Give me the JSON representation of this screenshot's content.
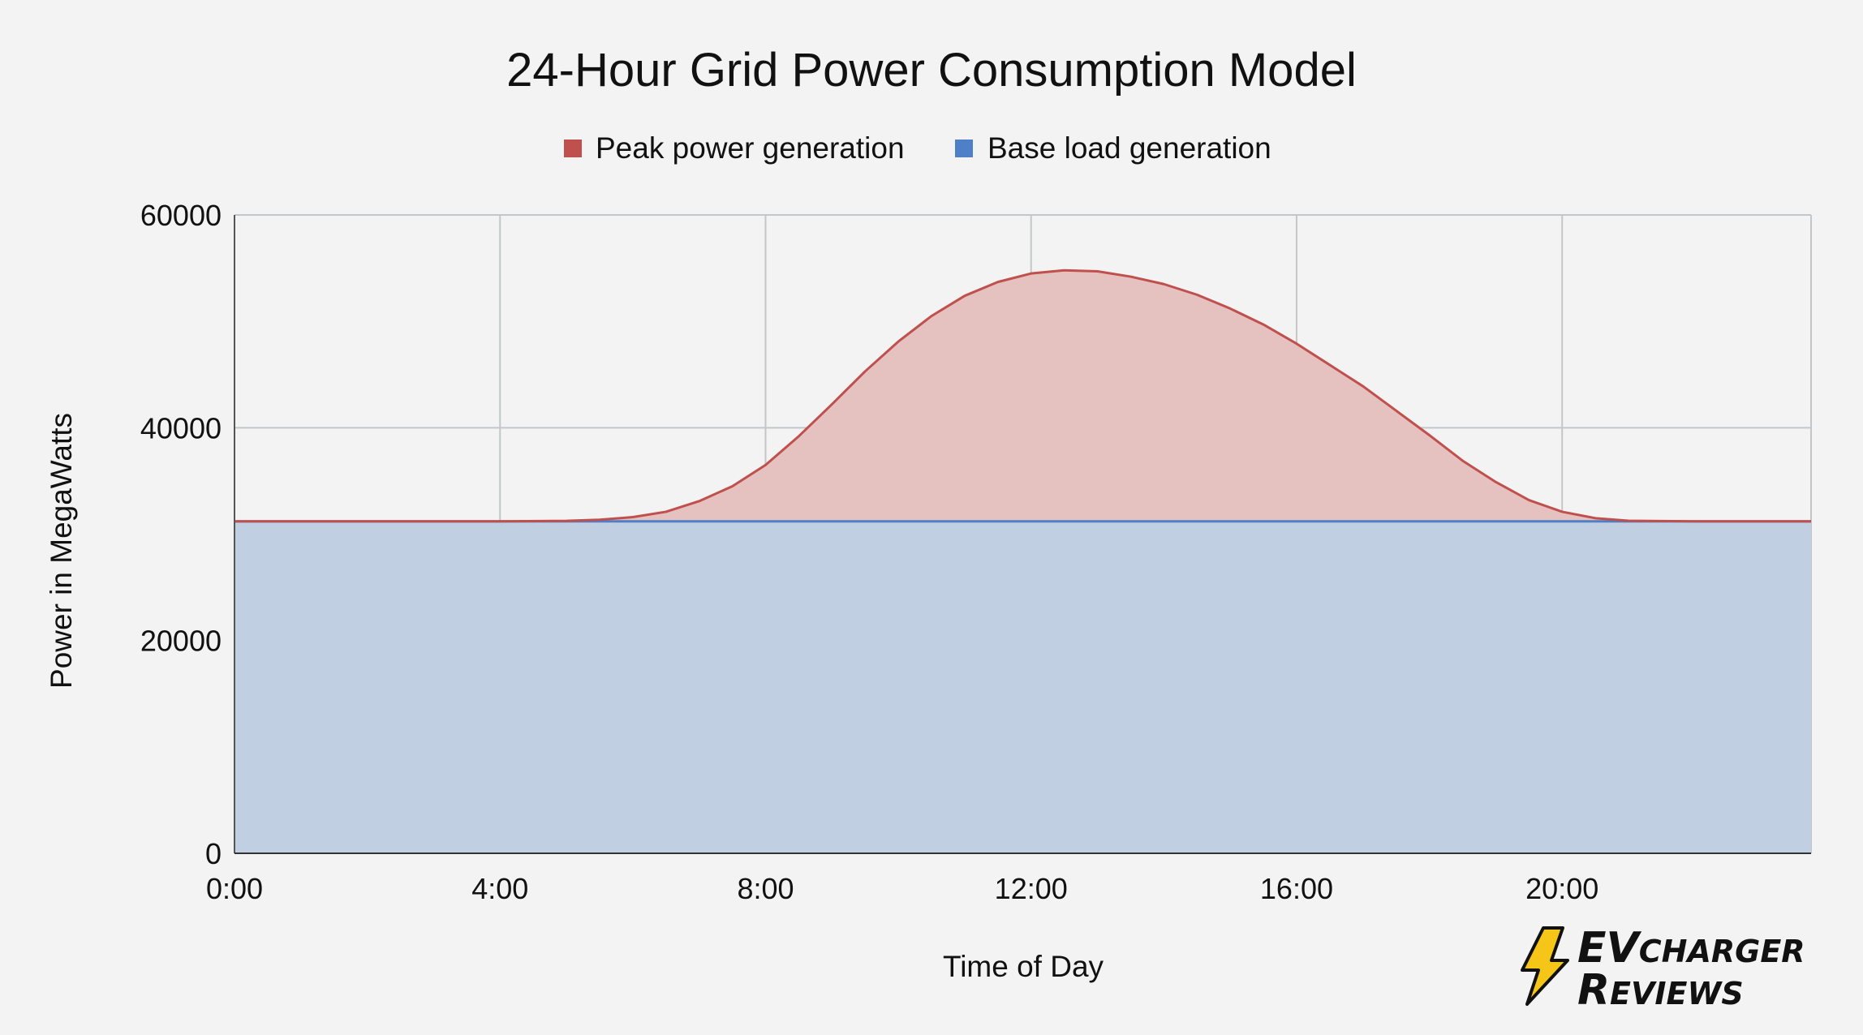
{
  "chart_data": {
    "type": "area",
    "stacked": true,
    "title": "24-Hour Grid Power Consumption Model",
    "xlabel": "Time of Day",
    "ylabel": "Power in MegaWatts",
    "xlim": [
      0,
      23.75
    ],
    "ylim": [
      0,
      60000
    ],
    "x_ticks": [
      0,
      4,
      8,
      12,
      16,
      20
    ],
    "x_tick_labels": [
      "0:00",
      "4:00",
      "8:00",
      "12:00",
      "16:00",
      "20:00"
    ],
    "y_ticks": [
      0,
      20000,
      40000,
      60000
    ],
    "y_tick_labels": [
      "0",
      "20000",
      "40000",
      "60000"
    ],
    "grid": true,
    "legend_position": "top-center",
    "x": [
      0,
      1,
      2,
      3,
      4,
      5,
      5.5,
      6,
      6.5,
      7,
      7.5,
      8,
      8.5,
      9,
      9.5,
      10,
      10.5,
      11,
      11.5,
      12,
      12.5,
      13,
      13.5,
      14,
      14.5,
      15,
      15.5,
      16,
      16.5,
      17,
      17.5,
      18,
      18.5,
      19,
      19.5,
      20,
      20.5,
      21,
      22,
      23,
      23.75
    ],
    "series": [
      {
        "name": "Base load generation",
        "color": "#4f7fc6",
        "fill": "#c0cfe1",
        "values": [
          31200,
          31200,
          31200,
          31200,
          31200,
          31200,
          31200,
          31200,
          31200,
          31200,
          31200,
          31200,
          31200,
          31200,
          31200,
          31200,
          31200,
          31200,
          31200,
          31200,
          31200,
          31200,
          31200,
          31200,
          31200,
          31200,
          31200,
          31200,
          31200,
          31200,
          31200,
          31200,
          31200,
          31200,
          31200,
          31200,
          31200,
          31200,
          31200,
          31200,
          31200
        ]
      },
      {
        "name": "Peak power generation",
        "color": "#c0504d",
        "fill": "#e5c1c0",
        "values": [
          0,
          0,
          0,
          0,
          0,
          50,
          150,
          400,
          900,
          1900,
          3300,
          5300,
          8000,
          11000,
          14100,
          16900,
          19300,
          21200,
          22500,
          23300,
          23600,
          23500,
          23000,
          22300,
          21300,
          20000,
          18500,
          16700,
          14700,
          12700,
          10400,
          8100,
          5700,
          3700,
          2000,
          900,
          300,
          60,
          0,
          0,
          0
        ]
      }
    ]
  },
  "legend": {
    "items": [
      {
        "label": "Peak power generation",
        "color": "#c0504d"
      },
      {
        "label": "Base load generation",
        "color": "#4f7fc6"
      }
    ]
  },
  "logo": {
    "line1_big": "EV",
    "line1_small": "CHARGER",
    "line2_big": "R",
    "line2_small": "EVIEWS",
    "bolt_color": "#f5c518"
  }
}
